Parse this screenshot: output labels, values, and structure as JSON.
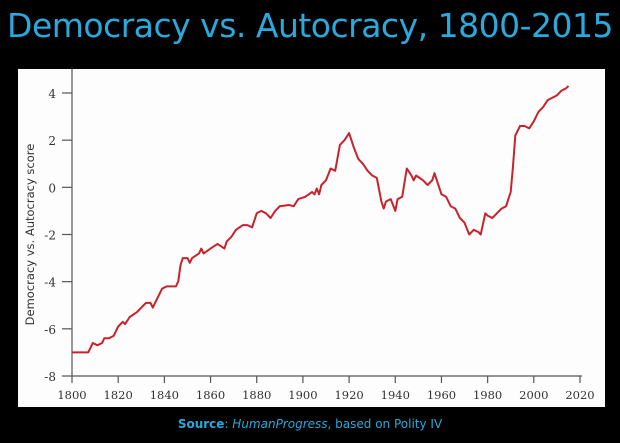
{
  "chart_data": {
    "type": "line",
    "title": "Democracy vs. Autocracy, 1800-2015",
    "xlabel": "",
    "ylabel": "Democracy vs. Autocracy score",
    "xlim": [
      1800,
      2020
    ],
    "ylim": [
      -8,
      4
    ],
    "xticks": [
      1800,
      1820,
      1840,
      1860,
      1880,
      1900,
      1920,
      1940,
      1960,
      1980,
      2000,
      2020
    ],
    "yticks": [
      -8,
      -6,
      -4,
      -2,
      0,
      2,
      4
    ],
    "grid": false,
    "line_color": "#c8232c",
    "x": [
      1800,
      1807,
      1809,
      1811,
      1813,
      1814,
      1816,
      1818,
      1820,
      1822,
      1823,
      1825,
      1828,
      1830,
      1832,
      1834,
      1835,
      1837,
      1839,
      1841,
      1845,
      1846,
      1847,
      1848,
      1850,
      1851,
      1852,
      1855,
      1856,
      1857,
      1860,
      1863,
      1866,
      1867,
      1869,
      1871,
      1874,
      1876,
      1878,
      1880,
      1882,
      1884,
      1886,
      1888,
      1890,
      1894,
      1896,
      1898,
      1901,
      1904,
      1905,
      1906,
      1907,
      1908,
      1910,
      1912,
      1914,
      1916,
      1918,
      1920,
      1922,
      1924,
      1926,
      1928,
      1930,
      1932,
      1934,
      1935,
      1936,
      1938,
      1940,
      1941,
      1943,
      1945,
      1947,
      1948,
      1949,
      1952,
      1954,
      1956,
      1957,
      1958,
      1960,
      1962,
      1964,
      1966,
      1968,
      1970,
      1972,
      1974,
      1976,
      1977,
      1979,
      1980,
      1982,
      1984,
      1986,
      1988,
      1990,
      1991,
      1992,
      1994,
      1996,
      1998,
      2000,
      2002,
      2004,
      2006,
      2008,
      2010,
      2012,
      2014,
      2015
    ],
    "y": [
      -7,
      -7,
      -6.6,
      -6.7,
      -6.6,
      -6.4,
      -6.4,
      -6.3,
      -5.9,
      -5.7,
      -5.8,
      -5.5,
      -5.3,
      -5.1,
      -4.9,
      -4.9,
      -5.1,
      -4.7,
      -4.3,
      -4.2,
      -4.2,
      -4.0,
      -3.3,
      -3.0,
      -3.0,
      -3.2,
      -3.0,
      -2.8,
      -2.6,
      -2.8,
      -2.6,
      -2.4,
      -2.6,
      -2.3,
      -2.1,
      -1.8,
      -1.6,
      -1.6,
      -1.7,
      -1.1,
      -1.0,
      -1.1,
      -1.3,
      -1.0,
      -0.8,
      -0.75,
      -0.8,
      -0.5,
      -0.4,
      -0.2,
      -0.3,
      -0.05,
      -0.3,
      0.1,
      0.3,
      0.8,
      0.7,
      1.8,
      2.0,
      2.3,
      1.7,
      1.2,
      1.0,
      0.7,
      0.5,
      0.4,
      -0.6,
      -0.9,
      -0.6,
      -0.5,
      -1.0,
      -0.5,
      -0.4,
      0.8,
      0.5,
      0.3,
      0.5,
      0.3,
      0.1,
      0.3,
      0.6,
      0.3,
      -0.3,
      -0.4,
      -0.8,
      -0.9,
      -1.3,
      -1.5,
      -2.0,
      -1.8,
      -1.9,
      -2.0,
      -1.1,
      -1.2,
      -1.3,
      -1.1,
      -0.9,
      -0.8,
      -0.2,
      0.9,
      2.2,
      2.6,
      2.6,
      2.5,
      2.8,
      3.2,
      3.4,
      3.7,
      3.8,
      3.9,
      4.1,
      4.2,
      4.3
    ]
  },
  "source": {
    "label": "Source",
    "name": "HumanProgress",
    "rest": ", based on Polity IV"
  }
}
